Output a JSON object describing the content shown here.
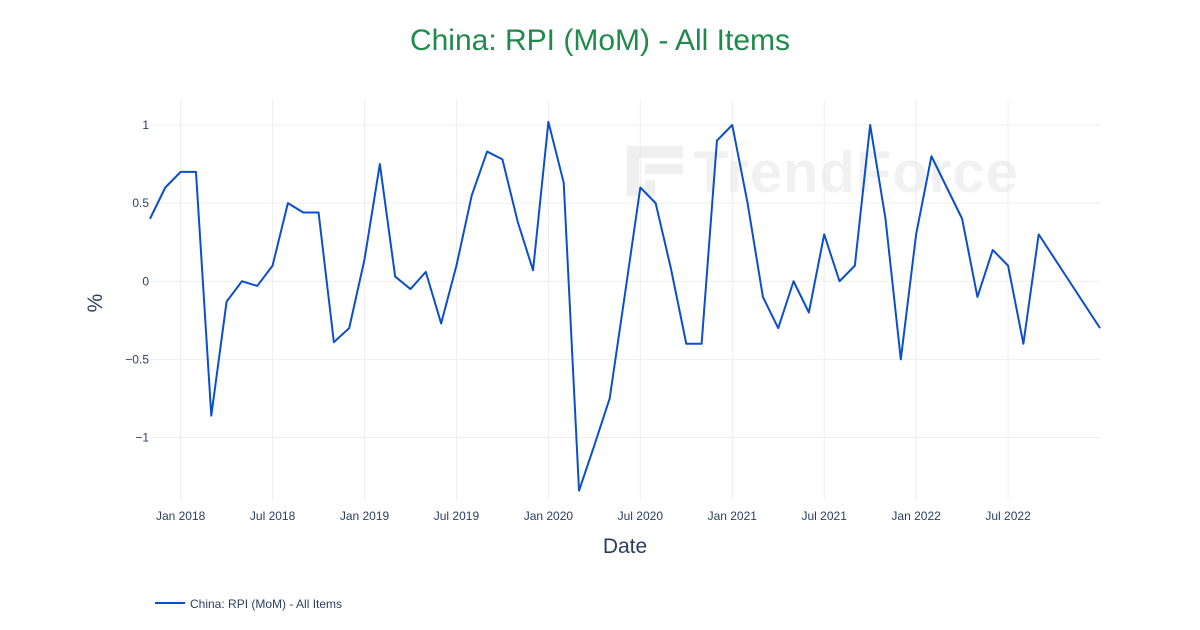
{
  "chart_data": {
    "type": "line",
    "title": "China: RPI (MoM) - All Items",
    "xlabel": "Date",
    "ylabel": "%",
    "ylim": [
      -1.4,
      1.16
    ],
    "yticks": [
      {
        "value": 1,
        "label": "1"
      },
      {
        "value": 0.5,
        "label": "0.5"
      },
      {
        "value": 0,
        "label": "0"
      },
      {
        "value": -0.5,
        "label": "−0.5"
      },
      {
        "value": -1,
        "label": "−1"
      }
    ],
    "xticks": [
      {
        "value": "2018-01",
        "label": "Jan 2018"
      },
      {
        "value": "2018-07",
        "label": "Jul 2018"
      },
      {
        "value": "2019-01",
        "label": "Jan 2019"
      },
      {
        "value": "2019-07",
        "label": "Jul 2019"
      },
      {
        "value": "2020-01",
        "label": "Jan 2020"
      },
      {
        "value": "2020-07",
        "label": "Jul 2020"
      },
      {
        "value": "2021-01",
        "label": "Jan 2021"
      },
      {
        "value": "2021-07",
        "label": "Jul 2021"
      },
      {
        "value": "2022-01",
        "label": "Jan 2022"
      },
      {
        "value": "2022-07",
        "label": "Jul 2022"
      }
    ],
    "grid": true,
    "legend_position": "bottom-left",
    "series": [
      {
        "name": "China: RPI (MoM) - All Items",
        "color": "#0b4fc9",
        "points": [
          [
            "2017-11",
            0.4
          ],
          [
            "2017-12",
            0.6
          ],
          [
            "2018-01",
            0.7
          ],
          [
            "2018-02",
            0.7
          ],
          [
            "2018-03",
            -0.86
          ],
          [
            "2018-04",
            -0.13
          ],
          [
            "2018-05",
            0.0
          ],
          [
            "2018-06",
            -0.03
          ],
          [
            "2018-07",
            0.1
          ],
          [
            "2018-08",
            0.5
          ],
          [
            "2018-09",
            0.44
          ],
          [
            "2018-10",
            0.44
          ],
          [
            "2018-11",
            -0.39
          ],
          [
            "2018-12",
            -0.3
          ],
          [
            "2019-01",
            0.14
          ],
          [
            "2019-02",
            0.75
          ],
          [
            "2019-03",
            0.03
          ],
          [
            "2019-04",
            -0.05
          ],
          [
            "2019-05",
            0.06
          ],
          [
            "2019-06",
            -0.27
          ],
          [
            "2019-07",
            0.1
          ],
          [
            "2019-08",
            0.55
          ],
          [
            "2019-09",
            0.83
          ],
          [
            "2019-10",
            0.78
          ],
          [
            "2019-11",
            0.38
          ],
          [
            "2019-12",
            0.07
          ],
          [
            "2020-01",
            1.02
          ],
          [
            "2020-02",
            0.63
          ],
          [
            "2020-03",
            -1.34
          ],
          [
            "2020-04",
            -1.05
          ],
          [
            "2020-05",
            -0.75
          ],
          [
            "2020-06",
            -0.08
          ],
          [
            "2020-07",
            0.6
          ],
          [
            "2020-08",
            0.5
          ],
          [
            "2020-09",
            0.08
          ],
          [
            "2020-10",
            -0.4
          ],
          [
            "2020-11",
            -0.4
          ],
          [
            "2020-12",
            0.9
          ],
          [
            "2021-01",
            1.0
          ],
          [
            "2021-02",
            0.5
          ],
          [
            "2021-03",
            -0.1
          ],
          [
            "2021-04",
            -0.3
          ],
          [
            "2021-05",
            0.0
          ],
          [
            "2021-06",
            -0.2
          ],
          [
            "2021-07",
            0.3
          ],
          [
            "2021-08",
            0.0
          ],
          [
            "2021-09",
            0.1
          ],
          [
            "2021-10",
            1.0
          ],
          [
            "2021-11",
            0.4
          ],
          [
            "2021-12",
            -0.5
          ],
          [
            "2022-01",
            0.3
          ],
          [
            "2022-02",
            0.8
          ],
          [
            "2022-03",
            0.6
          ],
          [
            "2022-04",
            0.4
          ],
          [
            "2022-05",
            -0.1
          ],
          [
            "2022-06",
            0.2
          ],
          [
            "2022-07",
            0.1
          ],
          [
            "2022-08",
            -0.4
          ],
          [
            "2022-09",
            0.3
          ],
          [
            "2022-10",
            0.15
          ],
          [
            "2022-11",
            0.0
          ],
          [
            "2022-12",
            -0.15
          ],
          [
            "2023-01",
            -0.3
          ]
        ]
      }
    ]
  },
  "watermark": {
    "text": "TrendForce"
  }
}
